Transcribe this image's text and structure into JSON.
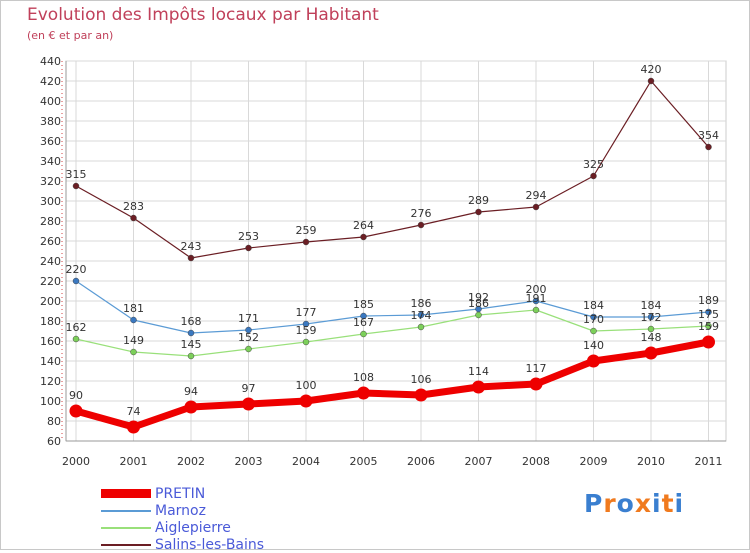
{
  "title": "Evolution des Impôts locaux par Habitant",
  "subtitle": "(en € et par an)",
  "logo": {
    "text": "Proxiti",
    "letters": [
      "P",
      "r",
      "o",
      "x",
      "i",
      "t",
      "i"
    ],
    "colors": [
      "#3a7fd0",
      "#f07a1e",
      "#3a7fd0",
      "#f07a1e",
      "#3a7fd0",
      "#f07a1e",
      "#3a7fd0"
    ]
  },
  "chart_data": {
    "type": "line",
    "title": "Evolution des Impôts locaux par Habitant",
    "subtitle": "(en € et par an)",
    "xlabel": "",
    "ylabel": "",
    "ylim": [
      60,
      440
    ],
    "ytick_step": 20,
    "grid": true,
    "legend_position": "bottom-left",
    "categories": [
      "2000",
      "2001",
      "2002",
      "2003",
      "2004",
      "2005",
      "2006",
      "2007",
      "2008",
      "2009",
      "2010",
      "2011"
    ],
    "series": [
      {
        "name": "Salins-les-Bains",
        "color": "#6b1e24",
        "marker": "#6b1e24",
        "width": 1.2,
        "values": [
          315,
          283,
          243,
          253,
          259,
          264,
          276,
          289,
          294,
          325,
          420,
          354
        ],
        "labels": [
          315,
          283,
          243,
          253,
          259,
          264,
          276,
          289,
          294,
          325,
          420,
          354
        ]
      },
      {
        "name": "Marnoz",
        "color": "#5b9bd5",
        "marker": "#3a78c0",
        "width": 1.2,
        "values": [
          220,
          181,
          168,
          171,
          177,
          185,
          186,
          192,
          200,
          184,
          184,
          189
        ],
        "labels": [
          220,
          181,
          168,
          171,
          177,
          185,
          186,
          192,
          200,
          184,
          184,
          189
        ]
      },
      {
        "name": "Aiglepierre",
        "color": "#99e07a",
        "marker": "#7ccf5a",
        "width": 1.2,
        "values": [
          162,
          149,
          145,
          152,
          159,
          167,
          174,
          186,
          191,
          170,
          172,
          175
        ],
        "labels": [
          162,
          149,
          145,
          152,
          159,
          167,
          174,
          186,
          191,
          170,
          172,
          175
        ]
      },
      {
        "name": "PRETIN",
        "color": "#ee0000",
        "marker": "#ee0000",
        "width": 7,
        "values": [
          90,
          74,
          94,
          97,
          100,
          108,
          106,
          114,
          117,
          140,
          148,
          159
        ],
        "labels": [
          90,
          74,
          94,
          97,
          100,
          108,
          106,
          114,
          117,
          140,
          148,
          159
        ]
      }
    ],
    "legend": [
      "PRETIN",
      "Marnoz",
      "Aiglepierre",
      "Salins-les-Bains"
    ]
  }
}
